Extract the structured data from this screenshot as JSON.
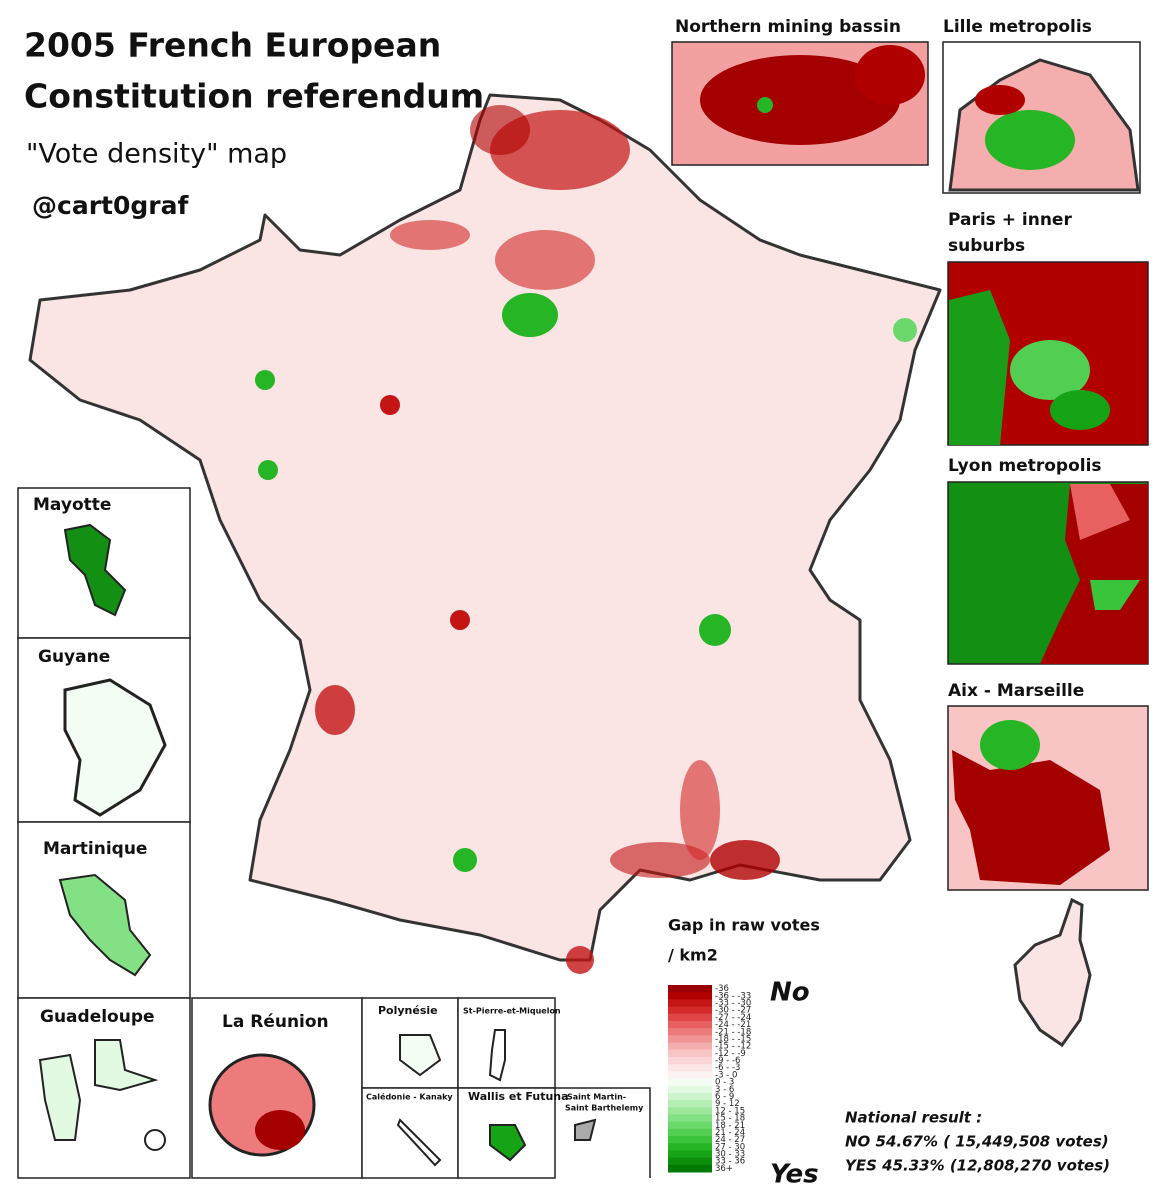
{
  "title": [
    "2005 French European",
    "Constitution referendum"
  ],
  "subtitle": "\"Vote density\" map",
  "handle": "@cart0graf",
  "insets": {
    "northern": "Northern mining bassin",
    "lille": "Lille metropolis",
    "paris": [
      "Paris + inner",
      "suburbs"
    ],
    "lyon": "Lyon metropolis",
    "marseille": "Aix - Marseille",
    "mayotte": "Mayotte",
    "guyane": "Guyane",
    "martinique": "Martinique",
    "guadeloupe": "Guadeloupe",
    "reunion": "La Réunion",
    "polynesie": "Polynésie",
    "stpierre": "St-Pierre-et-Miquelon",
    "caledonie": "Calédonie - Kanaky",
    "wallis": "Wallis et Futuna",
    "stmartin": [
      "Saint Martin-",
      "Saint Barthelemy"
    ]
  },
  "legend": {
    "title": [
      "Gap in raw votes",
      "/ km2"
    ],
    "no": "No",
    "yes": "Yes",
    "bins": [
      {
        "label": "-36",
        "color": "#9b0000"
      },
      {
        "label": "-36 - -33",
        "color": "#b00000"
      },
      {
        "label": "-33 - -30",
        "color": "#c41414"
      },
      {
        "label": "-30 - -27",
        "color": "#d42a2a"
      },
      {
        "label": "-27 - -24",
        "color": "#e04545"
      },
      {
        "label": "-24 - -21",
        "color": "#e86060"
      },
      {
        "label": "-21 - -18",
        "color": "#ee7b7b"
      },
      {
        "label": "-18 - -15",
        "color": "#f29595"
      },
      {
        "label": "-15 - -12",
        "color": "#f5aeae"
      },
      {
        "label": "-12 - -9",
        "color": "#f8c4c4"
      },
      {
        "label": "-9 - -6",
        "color": "#fad6d6"
      },
      {
        "label": "-6 - -3",
        "color": "#fce6e6"
      },
      {
        "label": "-3 - 0",
        "color": "#fef3f3"
      },
      {
        "label": "0 - 3",
        "color": "#f3fdf3"
      },
      {
        "label": "3 - 6",
        "color": "#e2f9e2"
      },
      {
        "label": "6 - 9",
        "color": "#cdf4cd"
      },
      {
        "label": "9 - 12",
        "color": "#b5eeb5"
      },
      {
        "label": "12 - 15",
        "color": "#9de79d"
      },
      {
        "label": "15 - 18",
        "color": "#84e084"
      },
      {
        "label": "18 - 21",
        "color": "#6bd86b"
      },
      {
        "label": "21 - 24",
        "color": "#52cf52"
      },
      {
        "label": "24 - 27",
        "color": "#3ac43a"
      },
      {
        "label": "27 - 30",
        "color": "#25b525"
      },
      {
        "label": "30 - 33",
        "color": "#16a316"
      },
      {
        "label": "33 - 36",
        "color": "#0b8f0b"
      },
      {
        "label": "36+",
        "color": "#037a03"
      }
    ]
  },
  "national_result": [
    "National result :",
    "NO 54.67% ( 15,449,508 votes)",
    "YES 45.33% (12,808,270 votes)"
  ]
}
